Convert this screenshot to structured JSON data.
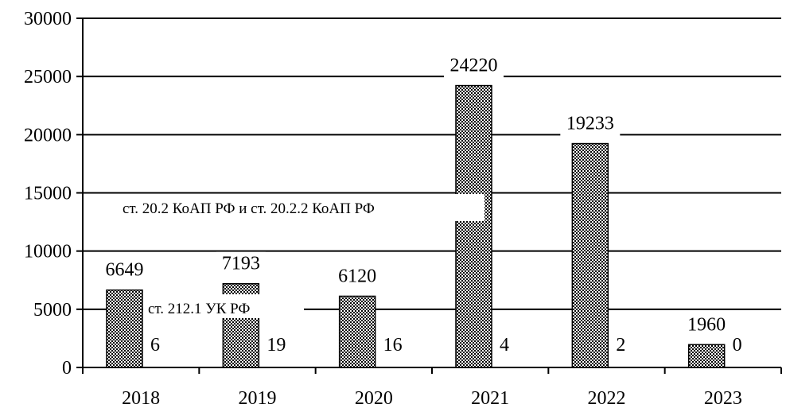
{
  "chart_data": {
    "type": "bar",
    "categories": [
      "2018",
      "2019",
      "2020",
      "2021",
      "2022",
      "2023"
    ],
    "series": [
      {
        "values": [
          6649,
          7193,
          6120,
          24220,
          19233,
          1960
        ]
      },
      {
        "values": [
          6,
          19,
          16,
          4,
          2,
          0
        ]
      }
    ],
    "annotations": [
      "ст. 20.2 КоАП РФ и ст. 20.2.2 КоАП РФ",
      "ст. 212.1 УК РФ"
    ],
    "ylim": [
      0,
      30000
    ],
    "yticks": [
      0,
      5000,
      10000,
      15000,
      20000,
      25000,
      30000
    ],
    "grid": true,
    "legend": "none",
    "bar_pattern": "dotted-hatch",
    "colors": {
      "bar_fill": "#ffffff",
      "bar_dots": "#000000",
      "axis": "#000000",
      "grid": "#000000"
    }
  }
}
